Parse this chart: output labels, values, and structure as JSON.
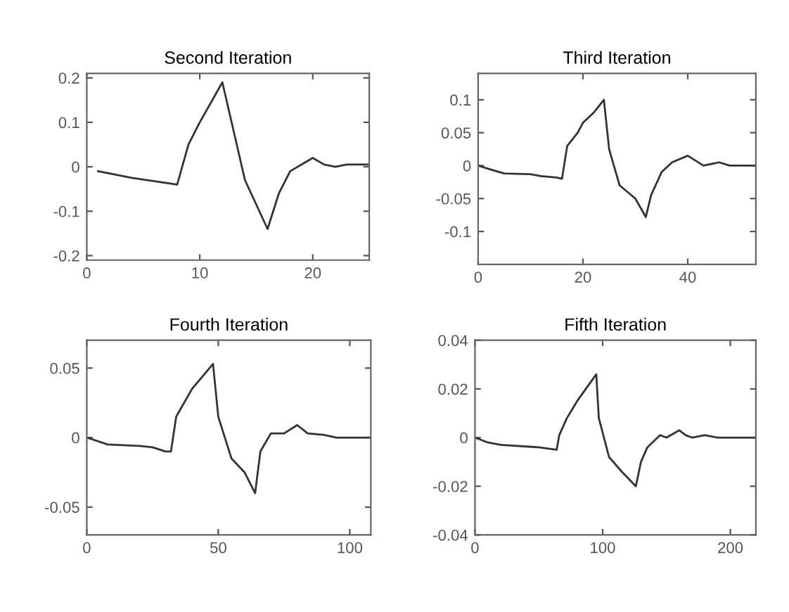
{
  "chart_data": [
    {
      "type": "line",
      "title": "Second Iteration",
      "xlim": [
        0,
        25
      ],
      "ylim": [
        -0.21,
        0.21
      ],
      "xticks": [
        0,
        10,
        20
      ],
      "yticks": [
        -0.2,
        -0.1,
        0,
        0.1,
        0.2
      ],
      "grid": false,
      "legend": false,
      "series": [
        {
          "color": "#333333",
          "x": [
            1,
            4,
            8,
            9,
            10,
            12,
            14,
            16,
            17,
            18,
            20,
            21,
            22,
            23,
            25
          ],
          "values": [
            -0.01,
            -0.025,
            -0.04,
            0.05,
            0.1,
            0.19,
            -0.03,
            -0.14,
            -0.06,
            -0.01,
            0.02,
            0.005,
            0,
            0.005,
            0.005
          ]
        }
      ]
    },
    {
      "type": "line",
      "title": "Third Iteration",
      "xlim": [
        0,
        53
      ],
      "ylim": [
        -0.15,
        0.14
      ],
      "xticks": [
        0,
        20,
        40
      ],
      "yticks": [
        -0.1,
        -0.05,
        0,
        0.05,
        0.1
      ],
      "grid": false,
      "legend": false,
      "series": [
        {
          "color": "#333333",
          "x": [
            0,
            2,
            5,
            10,
            12,
            15,
            16,
            17,
            19,
            20,
            22,
            24,
            25,
            27,
            30,
            32,
            33,
            35,
            37,
            40,
            43,
            46,
            48,
            53
          ],
          "values": [
            0,
            -0.005,
            -0.012,
            -0.013,
            -0.016,
            -0.018,
            -0.02,
            0.03,
            0.05,
            0.065,
            0.08,
            0.1,
            0.025,
            -0.03,
            -0.05,
            -0.078,
            -0.045,
            -0.01,
            0.005,
            0.015,
            0,
            0.005,
            0,
            0
          ]
        }
      ]
    },
    {
      "type": "line",
      "title": "Fourth Iteration",
      "xlim": [
        0,
        108
      ],
      "ylim": [
        -0.07,
        0.07
      ],
      "xticks": [
        0,
        50,
        100
      ],
      "yticks": [
        -0.05,
        0,
        0.05
      ],
      "grid": false,
      "legend": false,
      "series": [
        {
          "color": "#333333",
          "x": [
            0,
            8,
            20,
            25,
            30,
            32,
            34,
            40,
            48,
            50,
            55,
            60,
            64,
            66,
            70,
            75,
            80,
            84,
            90,
            95,
            108
          ],
          "values": [
            0,
            -0.005,
            -0.006,
            -0.007,
            -0.01,
            -0.01,
            0.015,
            0.035,
            0.053,
            0.015,
            -0.015,
            -0.025,
            -0.04,
            -0.01,
            0.003,
            0.003,
            0.009,
            0.003,
            0.002,
            0,
            0
          ]
        }
      ]
    },
    {
      "type": "line",
      "title": "Fifth Iteration",
      "xlim": [
        0,
        220
      ],
      "ylim": [
        -0.04,
        0.04
      ],
      "xticks": [
        0,
        100,
        200
      ],
      "yticks": [
        -0.04,
        -0.02,
        0,
        0.02,
        0.04
      ],
      "grid": false,
      "legend": false,
      "series": [
        {
          "color": "#333333",
          "x": [
            0,
            10,
            20,
            50,
            64,
            66,
            72,
            80,
            95,
            97,
            105,
            115,
            126,
            130,
            135,
            145,
            150,
            160,
            165,
            170,
            180,
            190,
            220
          ],
          "values": [
            0,
            -0.002,
            -0.003,
            -0.004,
            -0.005,
            0.001,
            0.008,
            0.015,
            0.026,
            0.008,
            -0.008,
            -0.014,
            -0.02,
            -0.01,
            -0.004,
            0.001,
            0,
            0.003,
            0.001,
            0,
            0.001,
            0,
            0
          ]
        }
      ]
    }
  ]
}
